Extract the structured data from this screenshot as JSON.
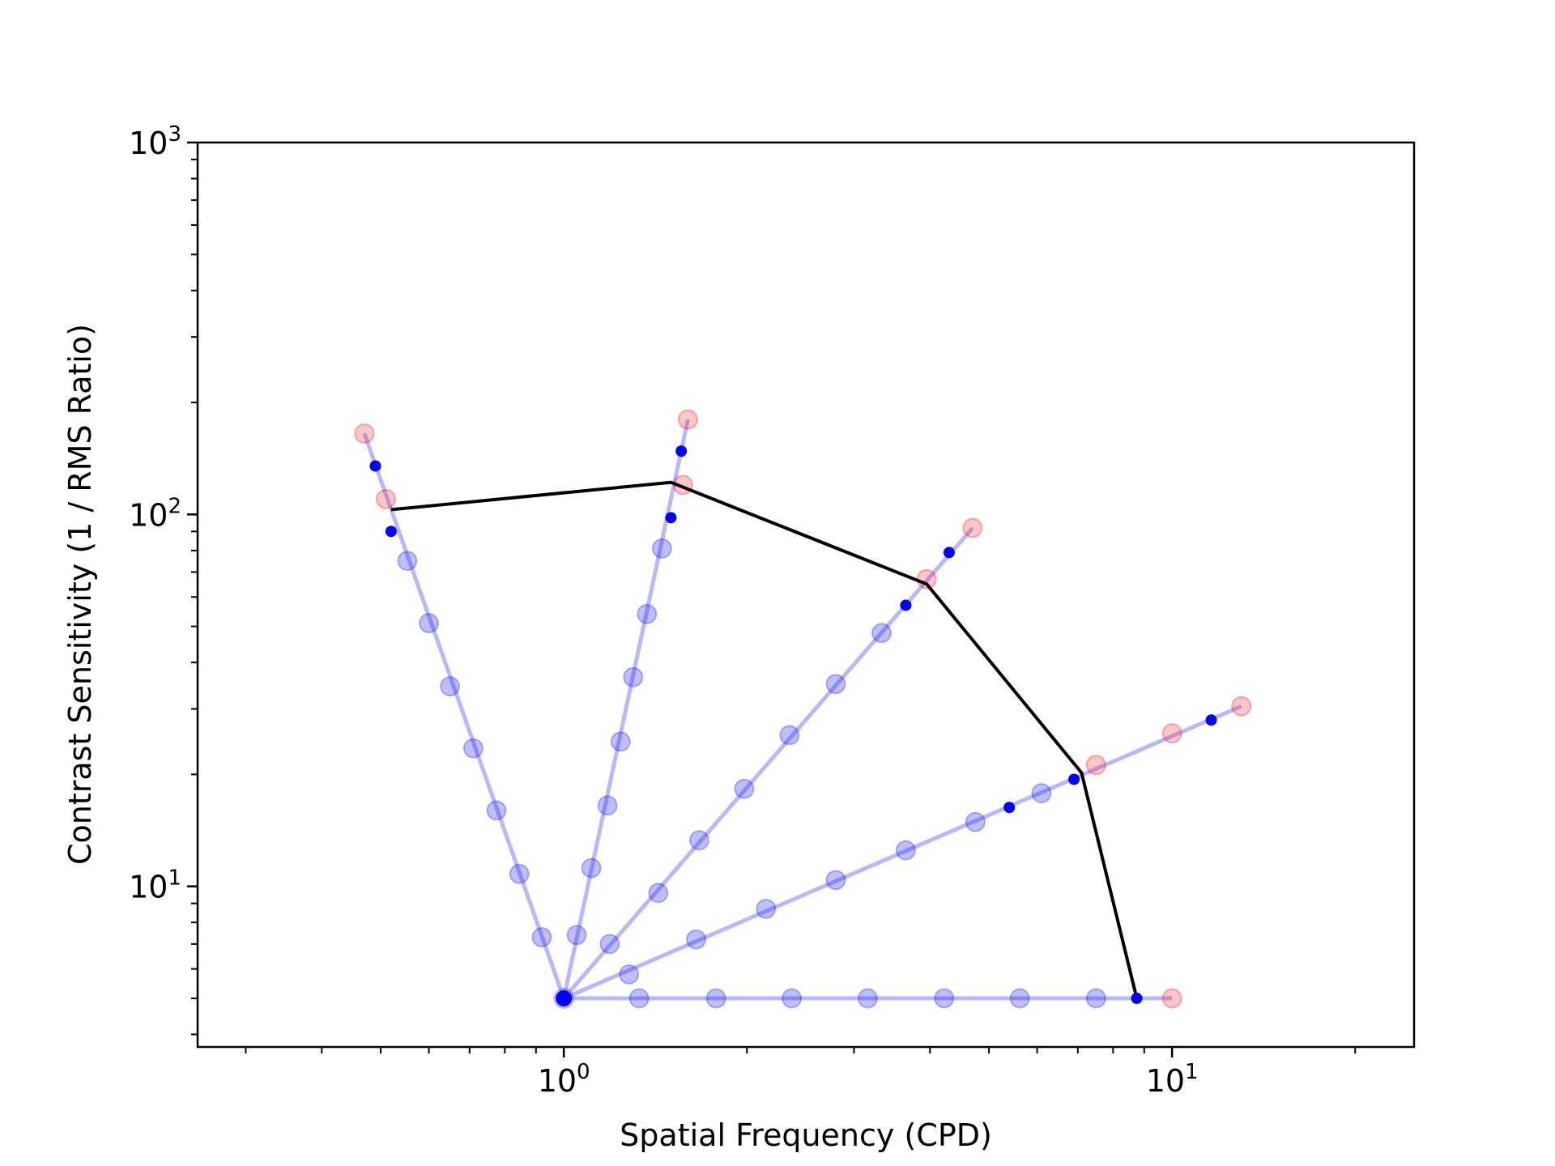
{
  "chart_data": {
    "type": "scatter",
    "title": "",
    "xlabel": "Spatial Frequency (CPD)",
    "ylabel": "Contrast Sensitivity (1 / RMS Ratio)",
    "xscale": "log",
    "yscale": "log",
    "xlim": [
      0.25,
      25
    ],
    "ylim": [
      3.7,
      1000
    ],
    "x_ticks": [
      {
        "base": "10",
        "exp": "0",
        "value": 1
      },
      {
        "base": "10",
        "exp": "1",
        "value": 10
      }
    ],
    "y_ticks": [
      {
        "base": "10",
        "exp": "1",
        "value": 10
      },
      {
        "base": "10",
        "exp": "2",
        "value": 100
      },
      {
        "base": "10",
        "exp": "3",
        "value": 1000
      }
    ],
    "colors": {
      "ray": "#0000ff",
      "rejected": "#ff0000",
      "threshold": "#000000",
      "axes": "#000000"
    },
    "origin": {
      "x": 1.0,
      "y": 5.0
    },
    "rays": [
      {
        "name": "ray-1",
        "end": {
          "x": 0.47,
          "y": 165
        },
        "tested": [
          [
            0.92,
            7.3
          ],
          [
            0.845,
            10.8
          ],
          [
            0.775,
            16.0
          ],
          [
            0.71,
            23.5
          ],
          [
            0.65,
            34.5
          ],
          [
            0.6,
            51.0
          ],
          [
            0.553,
            75.0
          ]
        ],
        "hits": [
          [
            0.52,
            90.0
          ],
          [
            0.49,
            135.0
          ]
        ],
        "misses": [
          [
            0.51,
            110.0
          ],
          [
            0.47,
            165.0
          ]
        ]
      },
      {
        "name": "ray-2",
        "end": {
          "x": 1.6,
          "y": 180
        },
        "tested": [
          [
            1.05,
            7.4
          ],
          [
            1.11,
            11.2
          ],
          [
            1.18,
            16.5
          ],
          [
            1.24,
            24.5
          ],
          [
            1.3,
            36.5
          ],
          [
            1.37,
            54.0
          ],
          [
            1.45,
            81.0
          ]
        ],
        "hits": [
          [
            1.5,
            98.0
          ],
          [
            1.56,
            148.0
          ]
        ],
        "misses": [
          [
            1.57,
            120.0
          ],
          [
            1.6,
            180.0
          ]
        ]
      },
      {
        "name": "ray-3",
        "end": {
          "x": 4.7,
          "y": 92
        },
        "tested": [
          [
            1.19,
            7.0
          ],
          [
            1.43,
            9.6
          ],
          [
            1.67,
            13.3
          ],
          [
            1.98,
            18.3
          ],
          [
            2.35,
            25.5
          ],
          [
            2.8,
            35.0
          ],
          [
            3.33,
            48.0
          ]
        ],
        "hits": [
          [
            3.65,
            57.0
          ],
          [
            4.3,
            79.0
          ]
        ],
        "misses": [
          [
            3.95,
            67.0
          ],
          [
            4.7,
            92.0
          ]
        ]
      },
      {
        "name": "ray-4",
        "end": {
          "x": 13.0,
          "y": 30.5
        },
        "tested": [
          [
            1.28,
            5.8
          ],
          [
            1.65,
            7.2
          ],
          [
            2.15,
            8.7
          ],
          [
            2.8,
            10.4
          ],
          [
            3.65,
            12.5
          ],
          [
            4.75,
            14.9
          ],
          [
            6.1,
            17.8
          ]
        ],
        "hits": [
          [
            6.9,
            19.4
          ],
          [
            11.6,
            28.0
          ],
          [
            5.4,
            16.3
          ]
        ],
        "misses": [
          [
            7.5,
            21.2
          ],
          [
            10.0,
            25.8
          ],
          [
            13.0,
            30.5
          ]
        ]
      },
      {
        "name": "ray-5",
        "end": {
          "x": 10.0,
          "y": 5.0
        },
        "tested": [
          [
            1.33,
            5.0
          ],
          [
            1.78,
            5.0
          ],
          [
            2.37,
            5.0
          ],
          [
            3.16,
            5.0
          ],
          [
            4.22,
            5.0
          ],
          [
            5.62,
            5.0
          ],
          [
            7.5,
            5.0
          ]
        ],
        "hits": [
          [
            8.75,
            5.0
          ]
        ],
        "misses": [
          [
            10.0,
            5.0
          ]
        ]
      }
    ],
    "threshold_curve": {
      "x": [
        0.52,
        1.5,
        3.95,
        7.1,
        8.75
      ],
      "y": [
        103,
        122,
        65,
        20.2,
        5.0
      ]
    }
  }
}
